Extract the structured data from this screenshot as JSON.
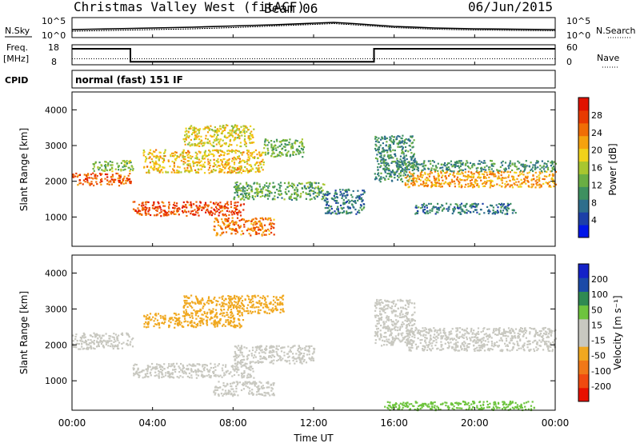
{
  "header": {
    "title": "Christmas Valley West (fitACF)",
    "beam": "Beam 06",
    "date": "06/Jun/2015"
  },
  "colors": {
    "power_scale": [
      "#0016e8",
      "#1d3fa8",
      "#2e6e8c",
      "#3e9060",
      "#6aae43",
      "#a8c62f",
      "#f0d21a",
      "#f5a20e",
      "#f06d05",
      "#e83a01",
      "#e01200"
    ],
    "velocity_scale": [
      "#1422c8",
      "#1c4aa8",
      "#2f8a52",
      "#6ec43e",
      "#c8c8c0",
      "#c8c8c0",
      "#f0a820",
      "#f07818",
      "#f04a10",
      "#e81000"
    ]
  },
  "chart_data": [
    {
      "type": "line",
      "panel": "noise",
      "left_label": "N.Sky",
      "right_label": "N.Search",
      "yticks_left": [
        "10^5",
        "10^0"
      ],
      "yticks_right": [
        "10^5",
        "10^0"
      ],
      "series": [
        {
          "name": "N.Sky",
          "x": [
            0,
            2,
            4,
            6,
            8,
            10,
            12,
            13,
            14,
            16,
            18,
            20,
            22,
            24
          ],
          "y": [
            2.0,
            2.2,
            2.4,
            2.6,
            2.9,
            3.2,
            3.6,
            3.8,
            3.5,
            2.8,
            2.4,
            2.2,
            2.1,
            2.0
          ]
        },
        {
          "name": "N.Search",
          "x": [
            0,
            2,
            4,
            6,
            8,
            10,
            12,
            13,
            14,
            16,
            18,
            20,
            22,
            24
          ],
          "y": [
            1.6,
            1.8,
            2.0,
            2.2,
            2.5,
            2.9,
            3.3,
            3.5,
            3.2,
            2.5,
            2.1,
            1.9,
            1.8,
            1.7
          ]
        }
      ],
      "ylim": [
        0,
        5
      ]
    },
    {
      "type": "line",
      "panel": "frequency",
      "left_label": "Freq.",
      "left_unit": "[MHz]",
      "right_label": "Nave",
      "yticks_left": [
        "18",
        "8"
      ],
      "yticks_right": [
        "60",
        "0"
      ],
      "series": [
        {
          "name": "Freq.",
          "x": [
            0,
            2.9,
            2.9,
            15.0,
            15.0,
            24
          ],
          "y": [
            16,
            16,
            9.5,
            9.5,
            16,
            16
          ]
        }
      ],
      "nave_level": 0.5,
      "ylim": [
        8,
        18
      ]
    },
    {
      "type": "heatmap",
      "panel": "power",
      "cpid_label": "CPID",
      "cpid_value": "normal (fast) 151 IF",
      "ylabel": "Slant Range [km]",
      "colorbar_label": "Power [dB]",
      "colorbar_ticks": [
        "28",
        "24",
        "20",
        "16",
        "12",
        "8",
        "4"
      ],
      "colorbar_range": [
        0,
        32
      ],
      "ylim": [
        180,
        4500
      ],
      "yticks": [
        "1000",
        "2000",
        "3000",
        "4000"
      ],
      "bands": [
        {
          "t0": 0.0,
          "t1": 2.9,
          "r0": 1900,
          "r1": 2250,
          "level": 26
        },
        {
          "t0": 1.0,
          "t1": 3.0,
          "r0": 2300,
          "r1": 2600,
          "level": 14
        },
        {
          "t0": 3.0,
          "t1": 8.5,
          "r0": 1050,
          "r1": 1450,
          "level": 27
        },
        {
          "t0": 3.5,
          "t1": 9.5,
          "r0": 2250,
          "r1": 2900,
          "level": 20
        },
        {
          "t0": 5.5,
          "t1": 9.0,
          "r0": 3000,
          "r1": 3600,
          "level": 18
        },
        {
          "t0": 7.0,
          "t1": 10.0,
          "r0": 500,
          "r1": 1000,
          "level": 24
        },
        {
          "t0": 9.5,
          "t1": 11.5,
          "r0": 2700,
          "r1": 3200,
          "level": 13
        },
        {
          "t0": 8.0,
          "t1": 12.5,
          "r0": 1500,
          "r1": 2000,
          "level": 12
        },
        {
          "t0": 12.5,
          "t1": 14.5,
          "r0": 1100,
          "r1": 1800,
          "level": 8
        },
        {
          "t0": 15.0,
          "t1": 17.0,
          "r0": 2000,
          "r1": 3300,
          "level": 10
        },
        {
          "t0": 16.5,
          "t1": 24.0,
          "r0": 1850,
          "r1": 2300,
          "level": 22
        },
        {
          "t0": 16.0,
          "t1": 24.0,
          "r0": 2300,
          "r1": 2600,
          "level": 10
        },
        {
          "t0": 17.0,
          "t1": 22.0,
          "r0": 1100,
          "r1": 1400,
          "level": 8
        }
      ]
    },
    {
      "type": "heatmap",
      "panel": "velocity",
      "ylabel": "Slant Range [km]",
      "colorbar_label": "Velocity [m s⁻¹]",
      "colorbar_ticks": [
        "200",
        "100",
        "50",
        "15",
        "-15",
        "-50",
        "-100",
        "-200"
      ],
      "colorbar_range": [
        -250,
        250
      ],
      "ylim": [
        180,
        4500
      ],
      "yticks": [
        "1000",
        "2000",
        "3000",
        "4000"
      ],
      "xlabel": "Time UT",
      "xticks": [
        "00:00",
        "04:00",
        "08:00",
        "12:00",
        "16:00",
        "20:00",
        "00:00"
      ],
      "xlim": [
        0,
        24
      ],
      "bands": [
        {
          "t0": 0.0,
          "t1": 3.0,
          "r0": 1900,
          "r1": 2350,
          "v": 0
        },
        {
          "t0": 3.0,
          "t1": 9.0,
          "r0": 1100,
          "r1": 1500,
          "v": 0
        },
        {
          "t0": 3.5,
          "t1": 8.5,
          "r0": 2500,
          "r1": 2900,
          "v": -60
        },
        {
          "t0": 5.5,
          "t1": 10.5,
          "r0": 2900,
          "r1": 3400,
          "v": -60
        },
        {
          "t0": 8.0,
          "t1": 12.0,
          "r0": 1500,
          "r1": 2000,
          "v": 0
        },
        {
          "t0": 7.0,
          "t1": 10.0,
          "r0": 600,
          "r1": 1000,
          "v": 0
        },
        {
          "t0": 15.0,
          "t1": 17.0,
          "r0": 2000,
          "r1": 3300,
          "v": 0
        },
        {
          "t0": 16.5,
          "t1": 24.0,
          "r0": 1850,
          "r1": 2500,
          "v": 0
        },
        {
          "t0": 15.5,
          "t1": 23.0,
          "r0": 200,
          "r1": 450,
          "v": 60
        }
      ]
    }
  ]
}
